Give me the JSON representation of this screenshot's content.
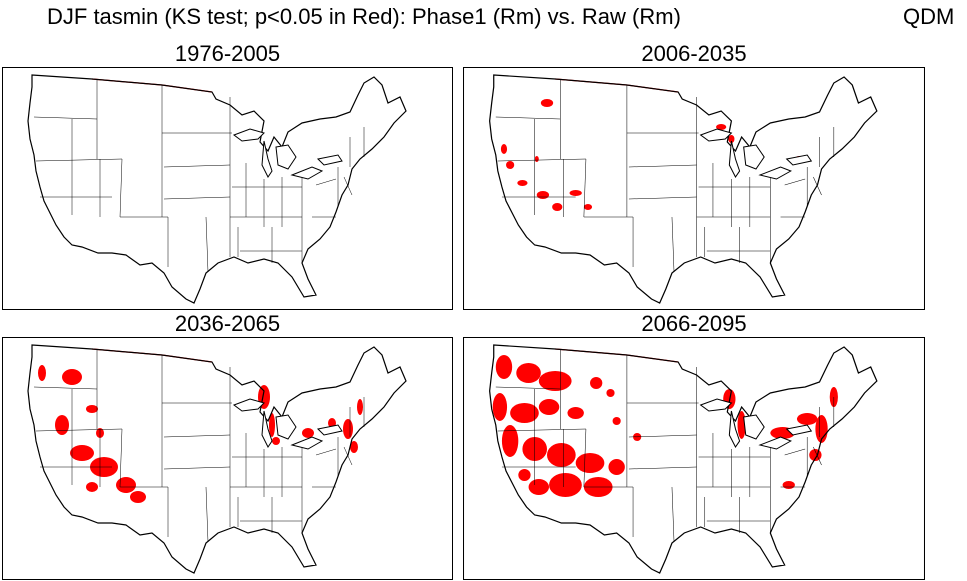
{
  "figure": {
    "title": "DJF  tasmin (KS test; p<0.05 in Red): Phase1 (Rm) vs. Raw (Rm)",
    "method_tag": "QDM",
    "significance_color": "#ff0000",
    "outline_color": "#000000"
  },
  "panels": [
    {
      "period": "1976-2005",
      "significance_coverage": "none"
    },
    {
      "period": "2006-2035",
      "significance_coverage": "sparse"
    },
    {
      "period": "2036-2065",
      "significance_coverage": "moderate"
    },
    {
      "period": "2066-2095",
      "significance_coverage": "widespread"
    }
  ]
}
